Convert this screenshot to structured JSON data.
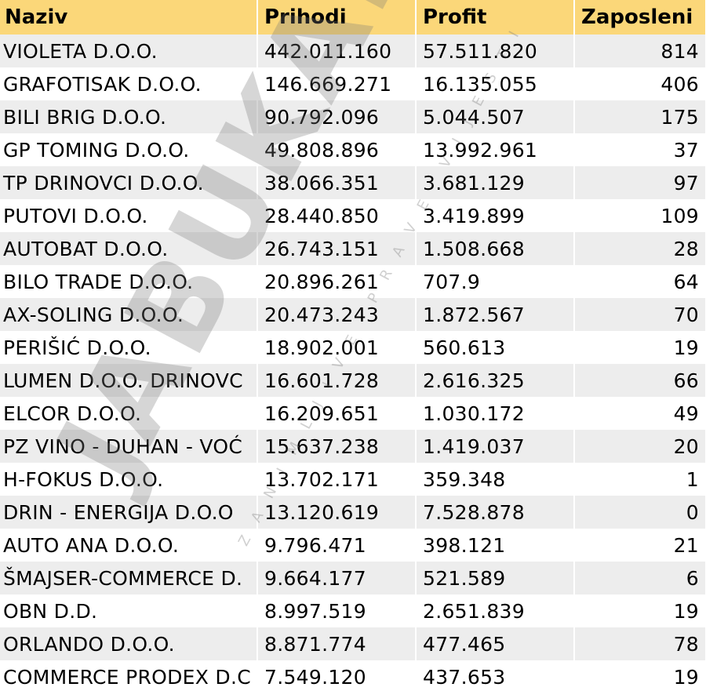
{
  "table": {
    "headers": [
      "Naziv",
      "Prihodi",
      "Profit",
      "Zaposleni"
    ],
    "rows": [
      [
        "VIOLETA D.O.O.",
        "442.011.160",
        "57.511.820",
        "814"
      ],
      [
        "GRAFOTISAK D.O.O.",
        "146.669.271",
        "16.135.055",
        "406"
      ],
      [
        "BILI BRIG D.O.O.",
        "90.792.096",
        "5.044.507",
        "175"
      ],
      [
        "GP TOMING D.O.O.",
        "49.808.896",
        "13.992.961",
        "37"
      ],
      [
        "TP DRINOVCI D.O.O.",
        "38.066.351",
        "3.681.129",
        "97"
      ],
      [
        "PUTOVI D.O.O.",
        "28.440.850",
        "3.419.899",
        "109"
      ],
      [
        "AUTOBAT D.O.O.",
        "26.743.151",
        "1.508.668",
        "28"
      ],
      [
        "BILO TRADE D.O.O.",
        "20.896.261",
        "707.9",
        "64"
      ],
      [
        "AX-SOLING D.O.O.",
        "20.473.243",
        "1.872.567",
        "70"
      ],
      [
        "PERIŠIĆ D.O.O.",
        "18.902.001",
        "560.613",
        "19"
      ],
      [
        "LUMEN D.O.O. DRINOVC",
        "16.601.728",
        "2.616.325",
        "66"
      ],
      [
        "ELCOR D.O.O.",
        "16.209.651",
        "1.030.172",
        "49"
      ],
      [
        "PZ VINO - DUHAN - VOĆ",
        "15.637.238",
        "1.419.037",
        "20"
      ],
      [
        "H-FOKUS D.O.O.",
        "13.702.171",
        "359.348",
        "1"
      ],
      [
        "DRIN - ENERGIJA D.O.O",
        "13.120.619",
        "7.528.878",
        "0"
      ],
      [
        "AUTO ANA D.O.O.",
        "9.796.471",
        "398.121",
        "21"
      ],
      [
        "ŠMAJSER-COMMERCE D.",
        "9.664.177",
        "521.589",
        "6"
      ],
      [
        "OBN D.D.",
        "8.997.519",
        "2.651.839",
        "19"
      ],
      [
        "ORLANDO D.O.O.",
        "8.871.774",
        "477.465",
        "78"
      ],
      [
        "COMMERCE PRODEX D.C",
        "7.549.120",
        "437.653",
        "19"
      ]
    ]
  },
  "watermark": {
    "text": "JABUKA.TV",
    "subtext": "ZANIMLJIVE PRAVE VIJESTI"
  },
  "colors": {
    "header_bg": "#fbd779",
    "stripe_bg": "#ededed"
  }
}
